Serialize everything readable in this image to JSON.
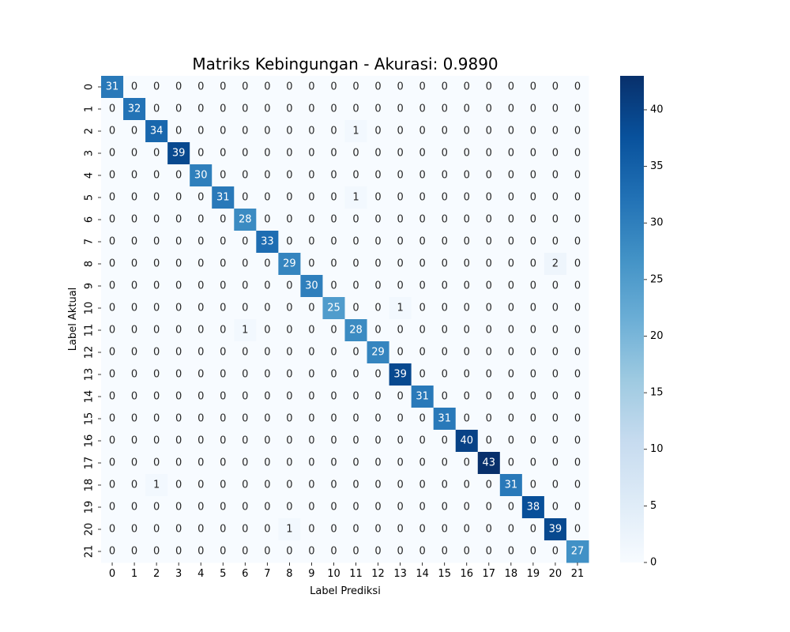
{
  "chart_data": {
    "type": "heatmap",
    "title": "Matriks Kebingungan - Akurasi: 0.9890",
    "xlabel": "Label Prediksi",
    "ylabel": "Label Aktual",
    "x_categories": [
      "0",
      "1",
      "2",
      "3",
      "4",
      "5",
      "6",
      "7",
      "8",
      "9",
      "10",
      "11",
      "12",
      "13",
      "14",
      "15",
      "16",
      "17",
      "18",
      "19",
      "20",
      "21"
    ],
    "y_categories": [
      "0",
      "1",
      "2",
      "3",
      "4",
      "5",
      "6",
      "7",
      "8",
      "9",
      "10",
      "11",
      "12",
      "13",
      "14",
      "15",
      "16",
      "17",
      "18",
      "19",
      "20",
      "21"
    ],
    "values": [
      [
        31,
        0,
        0,
        0,
        0,
        0,
        0,
        0,
        0,
        0,
        0,
        0,
        0,
        0,
        0,
        0,
        0,
        0,
        0,
        0,
        0,
        0
      ],
      [
        0,
        32,
        0,
        0,
        0,
        0,
        0,
        0,
        0,
        0,
        0,
        0,
        0,
        0,
        0,
        0,
        0,
        0,
        0,
        0,
        0,
        0
      ],
      [
        0,
        0,
        34,
        0,
        0,
        0,
        0,
        0,
        0,
        0,
        0,
        1,
        0,
        0,
        0,
        0,
        0,
        0,
        0,
        0,
        0,
        0
      ],
      [
        0,
        0,
        0,
        39,
        0,
        0,
        0,
        0,
        0,
        0,
        0,
        0,
        0,
        0,
        0,
        0,
        0,
        0,
        0,
        0,
        0,
        0
      ],
      [
        0,
        0,
        0,
        0,
        30,
        0,
        0,
        0,
        0,
        0,
        0,
        0,
        0,
        0,
        0,
        0,
        0,
        0,
        0,
        0,
        0,
        0
      ],
      [
        0,
        0,
        0,
        0,
        0,
        31,
        0,
        0,
        0,
        0,
        0,
        1,
        0,
        0,
        0,
        0,
        0,
        0,
        0,
        0,
        0,
        0
      ],
      [
        0,
        0,
        0,
        0,
        0,
        0,
        28,
        0,
        0,
        0,
        0,
        0,
        0,
        0,
        0,
        0,
        0,
        0,
        0,
        0,
        0,
        0
      ],
      [
        0,
        0,
        0,
        0,
        0,
        0,
        0,
        33,
        0,
        0,
        0,
        0,
        0,
        0,
        0,
        0,
        0,
        0,
        0,
        0,
        0,
        0
      ],
      [
        0,
        0,
        0,
        0,
        0,
        0,
        0,
        0,
        29,
        0,
        0,
        0,
        0,
        0,
        0,
        0,
        0,
        0,
        0,
        0,
        2,
        0
      ],
      [
        0,
        0,
        0,
        0,
        0,
        0,
        0,
        0,
        0,
        30,
        0,
        0,
        0,
        0,
        0,
        0,
        0,
        0,
        0,
        0,
        0,
        0
      ],
      [
        0,
        0,
        0,
        0,
        0,
        0,
        0,
        0,
        0,
        0,
        25,
        0,
        0,
        1,
        0,
        0,
        0,
        0,
        0,
        0,
        0,
        0
      ],
      [
        0,
        0,
        0,
        0,
        0,
        0,
        1,
        0,
        0,
        0,
        0,
        28,
        0,
        0,
        0,
        0,
        0,
        0,
        0,
        0,
        0,
        0
      ],
      [
        0,
        0,
        0,
        0,
        0,
        0,
        0,
        0,
        0,
        0,
        0,
        0,
        29,
        0,
        0,
        0,
        0,
        0,
        0,
        0,
        0,
        0
      ],
      [
        0,
        0,
        0,
        0,
        0,
        0,
        0,
        0,
        0,
        0,
        0,
        0,
        0,
        39,
        0,
        0,
        0,
        0,
        0,
        0,
        0,
        0
      ],
      [
        0,
        0,
        0,
        0,
        0,
        0,
        0,
        0,
        0,
        0,
        0,
        0,
        0,
        0,
        31,
        0,
        0,
        0,
        0,
        0,
        0,
        0
      ],
      [
        0,
        0,
        0,
        0,
        0,
        0,
        0,
        0,
        0,
        0,
        0,
        0,
        0,
        0,
        0,
        31,
        0,
        0,
        0,
        0,
        0,
        0
      ],
      [
        0,
        0,
        0,
        0,
        0,
        0,
        0,
        0,
        0,
        0,
        0,
        0,
        0,
        0,
        0,
        0,
        40,
        0,
        0,
        0,
        0,
        0
      ],
      [
        0,
        0,
        0,
        0,
        0,
        0,
        0,
        0,
        0,
        0,
        0,
        0,
        0,
        0,
        0,
        0,
        0,
        43,
        0,
        0,
        0,
        0
      ],
      [
        0,
        0,
        1,
        0,
        0,
        0,
        0,
        0,
        0,
        0,
        0,
        0,
        0,
        0,
        0,
        0,
        0,
        0,
        31,
        0,
        0,
        0
      ],
      [
        0,
        0,
        0,
        0,
        0,
        0,
        0,
        0,
        0,
        0,
        0,
        0,
        0,
        0,
        0,
        0,
        0,
        0,
        0,
        38,
        0,
        0
      ],
      [
        0,
        0,
        0,
        0,
        0,
        0,
        0,
        0,
        1,
        0,
        0,
        0,
        0,
        0,
        0,
        0,
        0,
        0,
        0,
        0,
        39,
        0
      ],
      [
        0,
        0,
        0,
        0,
        0,
        0,
        0,
        0,
        0,
        0,
        0,
        0,
        0,
        0,
        0,
        0,
        0,
        0,
        0,
        0,
        0,
        27
      ]
    ],
    "colorbar": {
      "vmin": 0,
      "vmax": 43,
      "ticks": [
        0,
        5,
        10,
        15,
        20,
        25,
        30,
        35,
        40
      ],
      "colormap": "Blues",
      "stops": [
        "#f7fbff",
        "#deebf7",
        "#c6dbef",
        "#9ecae1",
        "#6baed6",
        "#4292c6",
        "#2171b5",
        "#08519c",
        "#08306b"
      ]
    },
    "annotations": true,
    "grid": false
  }
}
